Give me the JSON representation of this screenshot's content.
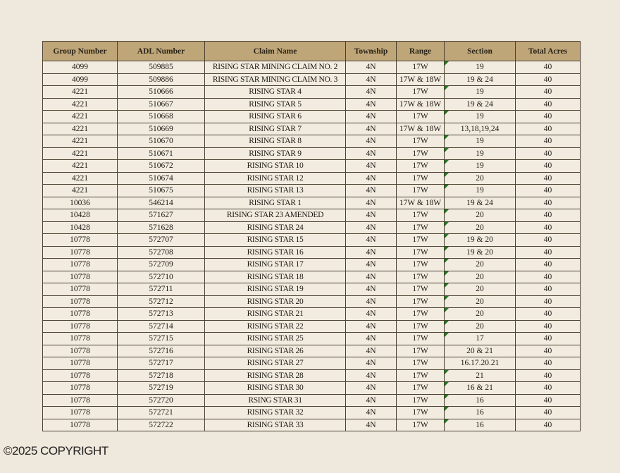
{
  "table": {
    "headers": [
      "Group Number",
      "ADL Number",
      "Claim Name",
      "Township",
      "Range",
      "Section",
      "Total Acres"
    ],
    "rows": [
      [
        "4099",
        "509885",
        "RISING STAR MINING CLAIM NO. 2",
        "4N",
        "17W",
        "19",
        "40"
      ],
      [
        "4099",
        "509886",
        "RISING STAR MINING CLAIM NO. 3",
        "4N",
        "17W & 18W",
        "19 & 24",
        "40"
      ],
      [
        "4221",
        "510666",
        "RISING STAR 4",
        "4N",
        "17W",
        "19",
        "40"
      ],
      [
        "4221",
        "510667",
        "RISING STAR 5",
        "4N",
        "17W & 18W",
        "19 & 24",
        "40"
      ],
      [
        "4221",
        "510668",
        "RISING STAR 6",
        "4N",
        "17W",
        "19",
        "40"
      ],
      [
        "4221",
        "510669",
        "RISING STAR 7",
        "4N",
        "17W & 18W",
        "13,18,19,24",
        "40"
      ],
      [
        "4221",
        "510670",
        "RISING STAR 8",
        "4N",
        "17W",
        "19",
        "40"
      ],
      [
        "4221",
        "510671",
        "RISING STAR 9",
        "4N",
        "17W",
        "19",
        "40"
      ],
      [
        "4221",
        "510672",
        "RISING STAR 10",
        "4N",
        "17W",
        "19",
        "40"
      ],
      [
        "4221",
        "510674",
        "RISING STAR 12",
        "4N",
        "17W",
        "20",
        "40"
      ],
      [
        "4221",
        "510675",
        "RISING STAR 13",
        "4N",
        "17W",
        "19",
        "40"
      ],
      [
        "10036",
        "546214",
        "RISING STAR 1",
        "4N",
        "17W & 18W",
        "19 & 24",
        "40"
      ],
      [
        "10428",
        "571627",
        "RISING STAR 23 AMENDED",
        "4N",
        "17W",
        "20",
        "40"
      ],
      [
        "10428",
        "571628",
        "RISING STAR 24",
        "4N",
        "17W",
        "20",
        "40"
      ],
      [
        "10778",
        "572707",
        "RISING STAR 15",
        "4N",
        "17W",
        "19 & 20",
        "40"
      ],
      [
        "10778",
        "572708",
        "RISING STAR 16",
        "4N",
        "17W",
        "19 & 20",
        "40"
      ],
      [
        "10778",
        "572709",
        "RISING STAR 17",
        "4N",
        "17W",
        "20",
        "40"
      ],
      [
        "10778",
        "572710",
        "RISING STAR 18",
        "4N",
        "17W",
        "20",
        "40"
      ],
      [
        "10778",
        "572711",
        "RISING STAR 19",
        "4N",
        "17W",
        "20",
        "40"
      ],
      [
        "10778",
        "572712",
        "RISING STAR 20",
        "4N",
        "17W",
        "20",
        "40"
      ],
      [
        "10778",
        "572713",
        "RISING STAR 21",
        "4N",
        "17W",
        "20",
        "40"
      ],
      [
        "10778",
        "572714",
        "RISING STAR 22",
        "4N",
        "17W",
        "20",
        "40"
      ],
      [
        "10778",
        "572715",
        "RISING STAR 25",
        "4N",
        "17W",
        "17",
        "40"
      ],
      [
        "10778",
        "572716",
        "RISING STAR 26",
        "4N",
        "17W",
        "20 & 21",
        "40"
      ],
      [
        "10778",
        "572717",
        "RISING STAR 27",
        "4N",
        "17W",
        "16.17.20.21",
        "40"
      ],
      [
        "10778",
        "572718",
        "RISING STAR 28",
        "4N",
        "17W",
        "21",
        "40"
      ],
      [
        "10778",
        "572719",
        "RISING STAR 30",
        "4N",
        "17W",
        "16 & 21",
        "40"
      ],
      [
        "10778",
        "572720",
        "RSING STAR 31",
        "4N",
        "17W",
        "16",
        "40"
      ],
      [
        "10778",
        "572721",
        "RISING STAR 32",
        "4N",
        "17W",
        "16",
        "40"
      ],
      [
        "10778",
        "572722",
        "RISING STAR 33",
        "4N",
        "17W",
        "16",
        "40"
      ]
    ],
    "header_color": "#bfa678",
    "marker_color": "#1d7a1d"
  },
  "footer": {
    "copyright": "©2025 COPYRIGHT"
  }
}
